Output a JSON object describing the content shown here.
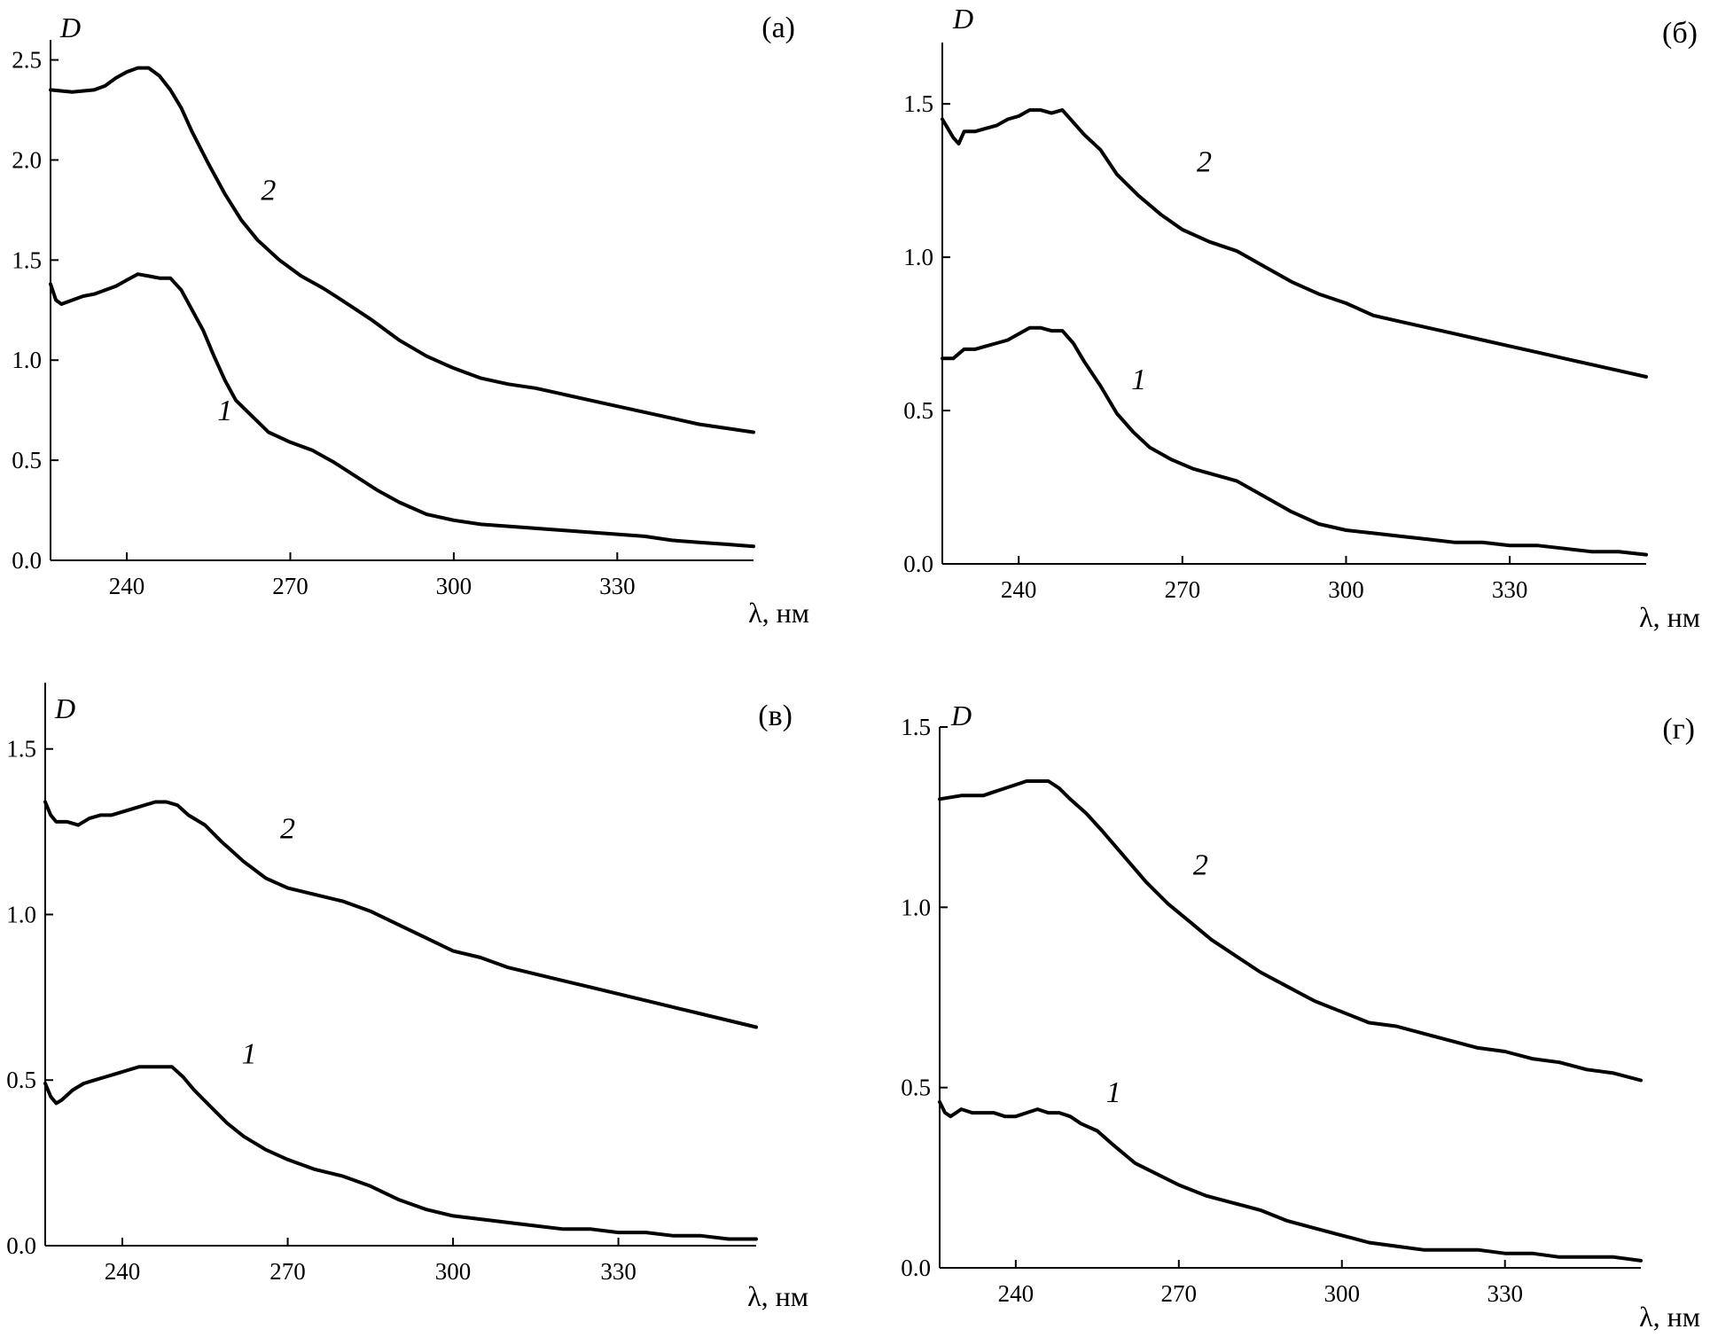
{
  "chart_data": [
    {
      "type": "line",
      "panel_label": "(а)",
      "ylabel": "D",
      "xlabel": "λ, нм",
      "xlim": [
        226,
        355
      ],
      "ylim": [
        0,
        2.6
      ],
      "xticks": [
        240,
        270,
        300,
        330
      ],
      "xtick_labels": [
        "240",
        "270",
        "300",
        "330"
      ],
      "yticks": [
        0,
        0.5,
        1.0,
        1.5,
        2.0,
        2.5
      ],
      "ytick_labels": [
        "0.0",
        "0.5",
        "1.0",
        "1.5",
        "2.0",
        "2.5"
      ],
      "series": [
        {
          "name": "1",
          "x": [
            226,
            227,
            228,
            230,
            232,
            234,
            236,
            238,
            240,
            242,
            244,
            246,
            248,
            250,
            252,
            254,
            256,
            258,
            260,
            263,
            266,
            270,
            274,
            278,
            282,
            286,
            290,
            295,
            300,
            305,
            310,
            315,
            320,
            325,
            330,
            335,
            340,
            345,
            350,
            355
          ],
          "y": [
            1.38,
            1.3,
            1.28,
            1.3,
            1.32,
            1.33,
            1.35,
            1.37,
            1.4,
            1.43,
            1.42,
            1.41,
            1.41,
            1.35,
            1.25,
            1.15,
            1.02,
            0.9,
            0.8,
            0.72,
            0.64,
            0.59,
            0.55,
            0.49,
            0.42,
            0.35,
            0.29,
            0.23,
            0.2,
            0.18,
            0.17,
            0.16,
            0.15,
            0.14,
            0.13,
            0.12,
            0.1,
            0.09,
            0.08,
            0.07
          ]
        },
        {
          "name": "2",
          "x": [
            226,
            230,
            234,
            236,
            238,
            240,
            242,
            244,
            246,
            248,
            250,
            252,
            255,
            258,
            261,
            264,
            268,
            272,
            276,
            280,
            285,
            290,
            295,
            300,
            305,
            310,
            315,
            320,
            325,
            330,
            335,
            340,
            345,
            350,
            355
          ],
          "y": [
            2.35,
            2.34,
            2.35,
            2.37,
            2.41,
            2.44,
            2.46,
            2.46,
            2.42,
            2.35,
            2.26,
            2.14,
            1.98,
            1.83,
            1.7,
            1.6,
            1.5,
            1.42,
            1.36,
            1.29,
            1.2,
            1.1,
            1.02,
            0.96,
            0.91,
            0.88,
            0.86,
            0.83,
            0.8,
            0.77,
            0.74,
            0.71,
            0.68,
            0.66,
            0.64
          ]
        }
      ],
      "curve_labels": [
        {
          "text": "1",
          "x": 258,
          "y": 0.7
        },
        {
          "text": "2",
          "x": 266,
          "y": 1.8
        }
      ]
    },
    {
      "type": "line",
      "panel_label": "(б)",
      "ylabel": "D",
      "xlabel": "λ, нм",
      "xlim": [
        226,
        355
      ],
      "ylim": [
        0,
        1.7
      ],
      "xticks": [
        240,
        270,
        300,
        330
      ],
      "xtick_labels": [
        "240",
        "270",
        "300",
        "330"
      ],
      "yticks": [
        0,
        0.5,
        1.0,
        1.5
      ],
      "ytick_labels": [
        "0.0",
        "0.5",
        "1.0",
        "1.5"
      ],
      "series": [
        {
          "name": "1",
          "x": [
            226,
            228,
            230,
            232,
            234,
            236,
            238,
            240,
            242,
            244,
            246,
            248,
            250,
            252,
            255,
            258,
            261,
            264,
            268,
            272,
            276,
            280,
            285,
            290,
            295,
            300,
            305,
            310,
            315,
            320,
            325,
            330,
            335,
            340,
            345,
            350,
            355
          ],
          "y": [
            0.67,
            0.67,
            0.7,
            0.7,
            0.71,
            0.72,
            0.73,
            0.75,
            0.77,
            0.77,
            0.76,
            0.76,
            0.72,
            0.66,
            0.58,
            0.49,
            0.43,
            0.38,
            0.34,
            0.31,
            0.29,
            0.27,
            0.22,
            0.17,
            0.13,
            0.11,
            0.1,
            0.09,
            0.08,
            0.07,
            0.07,
            0.06,
            0.06,
            0.05,
            0.04,
            0.04,
            0.03
          ]
        },
        {
          "name": "2",
          "x": [
            226,
            227,
            228,
            229,
            230,
            232,
            234,
            236,
            238,
            240,
            242,
            244,
            246,
            248,
            250,
            252,
            255,
            258,
            262,
            266,
            270,
            275,
            280,
            285,
            290,
            295,
            300,
            305,
            310,
            315,
            320,
            325,
            330,
            335,
            340,
            345,
            350,
            355
          ],
          "y": [
            1.45,
            1.42,
            1.39,
            1.37,
            1.41,
            1.41,
            1.42,
            1.43,
            1.45,
            1.46,
            1.48,
            1.48,
            1.47,
            1.48,
            1.44,
            1.4,
            1.35,
            1.27,
            1.2,
            1.14,
            1.09,
            1.05,
            1.02,
            0.97,
            0.92,
            0.88,
            0.85,
            0.81,
            0.79,
            0.77,
            0.75,
            0.73,
            0.71,
            0.69,
            0.67,
            0.65,
            0.63,
            0.61
          ]
        }
      ],
      "curve_labels": [
        {
          "text": "1",
          "x": 262,
          "y": 0.57
        },
        {
          "text": "2",
          "x": 274,
          "y": 1.28
        }
      ]
    },
    {
      "type": "line",
      "panel_label": "(в)",
      "ylabel": "D",
      "xlabel": "λ, нм",
      "xlim": [
        226,
        355
      ],
      "ylim": [
        0,
        1.7
      ],
      "xticks": [
        240,
        270,
        300,
        330
      ],
      "xtick_labels": [
        "240",
        "270",
        "300",
        "330"
      ],
      "yticks": [
        0,
        0.5,
        1.0,
        1.5
      ],
      "ytick_labels": [
        "0.0",
        "0.5",
        "1.0",
        "1.5"
      ],
      "series": [
        {
          "name": "1",
          "x": [
            226,
            227,
            228,
            229,
            231,
            233,
            235,
            237,
            239,
            241,
            243,
            245,
            247,
            249,
            251,
            253,
            256,
            259,
            262,
            266,
            270,
            275,
            280,
            285,
            290,
            295,
            300,
            305,
            310,
            315,
            320,
            325,
            330,
            335,
            340,
            345,
            350,
            355
          ],
          "y": [
            0.49,
            0.45,
            0.43,
            0.44,
            0.47,
            0.49,
            0.5,
            0.51,
            0.52,
            0.53,
            0.54,
            0.54,
            0.54,
            0.54,
            0.51,
            0.47,
            0.42,
            0.37,
            0.33,
            0.29,
            0.26,
            0.23,
            0.21,
            0.18,
            0.14,
            0.11,
            0.09,
            0.08,
            0.07,
            0.06,
            0.05,
            0.05,
            0.04,
            0.04,
            0.03,
            0.03,
            0.02,
            0.02
          ]
        },
        {
          "name": "2",
          "x": [
            226,
            227,
            228,
            230,
            232,
            234,
            236,
            238,
            240,
            242,
            244,
            246,
            248,
            250,
            252,
            255,
            258,
            262,
            266,
            270,
            275,
            280,
            285,
            290,
            295,
            300,
            305,
            310,
            315,
            320,
            325,
            330,
            335,
            340,
            345,
            350,
            355
          ],
          "y": [
            1.34,
            1.3,
            1.28,
            1.28,
            1.27,
            1.29,
            1.3,
            1.3,
            1.31,
            1.32,
            1.33,
            1.34,
            1.34,
            1.33,
            1.3,
            1.27,
            1.22,
            1.16,
            1.11,
            1.08,
            1.06,
            1.04,
            1.01,
            0.97,
            0.93,
            0.89,
            0.87,
            0.84,
            0.82,
            0.8,
            0.78,
            0.76,
            0.74,
            0.72,
            0.7,
            0.68,
            0.66
          ]
        }
      ],
      "curve_labels": [
        {
          "text": "1",
          "x": 263,
          "y": 0.55
        },
        {
          "text": "2",
          "x": 270,
          "y": 1.23
        }
      ]
    },
    {
      "type": "line",
      "panel_label": "(г)",
      "ylabel": "D",
      "xlabel": "λ, нм",
      "xlim": [
        226,
        355
      ],
      "ylim": [
        0,
        1.5
      ],
      "xticks": [
        240,
        270,
        300,
        330
      ],
      "xtick_labels": [
        "240",
        "270",
        "300",
        "330"
      ],
      "yticks": [
        0,
        0.5,
        1.0,
        1.5
      ],
      "ytick_labels": [
        "0.0",
        "0.5",
        "1.0",
        "1.5"
      ],
      "series": [
        {
          "name": "1",
          "x": [
            226,
            227,
            228,
            230,
            232,
            234,
            236,
            238,
            240,
            242,
            244,
            246,
            248,
            250,
            252,
            255,
            258,
            262,
            266,
            270,
            275,
            280,
            285,
            290,
            295,
            300,
            305,
            310,
            315,
            320,
            325,
            330,
            335,
            340,
            345,
            350,
            355
          ],
          "y": [
            0.46,
            0.43,
            0.42,
            0.44,
            0.43,
            0.43,
            0.43,
            0.42,
            0.42,
            0.43,
            0.44,
            0.43,
            0.43,
            0.42,
            0.4,
            0.38,
            0.34,
            0.29,
            0.26,
            0.23,
            0.2,
            0.18,
            0.16,
            0.13,
            0.11,
            0.09,
            0.07,
            0.06,
            0.05,
            0.05,
            0.05,
            0.04,
            0.04,
            0.03,
            0.03,
            0.03,
            0.02
          ]
        },
        {
          "name": "2",
          "x": [
            226,
            230,
            234,
            236,
            238,
            240,
            242,
            244,
            246,
            248,
            250,
            253,
            256,
            260,
            264,
            268,
            272,
            276,
            280,
            285,
            290,
            295,
            300,
            305,
            310,
            315,
            320,
            325,
            330,
            335,
            340,
            345,
            350,
            355
          ],
          "y": [
            1.3,
            1.31,
            1.31,
            1.32,
            1.33,
            1.34,
            1.35,
            1.35,
            1.35,
            1.33,
            1.3,
            1.26,
            1.21,
            1.14,
            1.07,
            1.01,
            0.96,
            0.91,
            0.87,
            0.82,
            0.78,
            0.74,
            0.71,
            0.68,
            0.67,
            0.65,
            0.63,
            0.61,
            0.6,
            0.58,
            0.57,
            0.55,
            0.54,
            0.52
          ]
        }
      ],
      "curve_labels": [
        {
          "text": "1",
          "x": 258,
          "y": 0.46
        },
        {
          "text": "2",
          "x": 274,
          "y": 1.09
        }
      ]
    }
  ]
}
